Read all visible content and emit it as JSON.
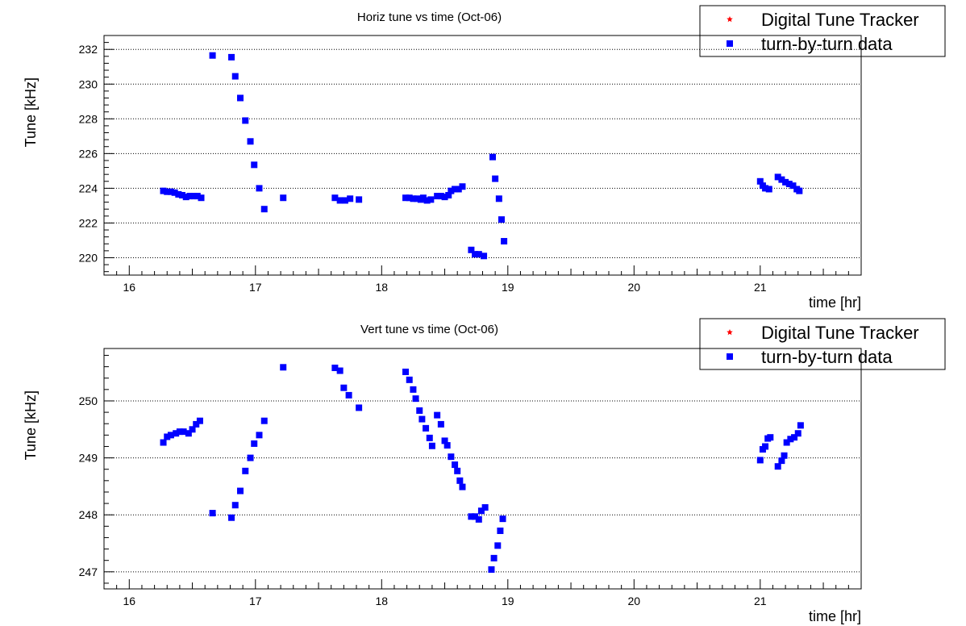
{
  "chart_data": [
    {
      "type": "scatter",
      "title": "Horiz tune vs time (Oct-06)",
      "xlabel": "time [hr]",
      "ylabel": "Tune [kHz]",
      "xlim": [
        15.8,
        21.8
      ],
      "ylim": [
        219.0,
        232.8
      ],
      "xticks": [
        16,
        17,
        18,
        19,
        20,
        21
      ],
      "yticks": [
        220,
        222,
        224,
        226,
        228,
        230,
        232
      ],
      "grid": "horizontal dotted",
      "legend": {
        "position": "top-right",
        "entries": [
          {
            "label": "Digital Tune Tracker",
            "color": "#ff0000",
            "marker": "star"
          },
          {
            "label": "turn-by-turn data",
            "color": "#0000ff",
            "marker": "square"
          }
        ]
      },
      "series": [
        {
          "name": "Digital Tune Tracker",
          "color": "#ff0000",
          "marker": "star",
          "points": []
        },
        {
          "name": "turn-by-turn data",
          "color": "#0000ff",
          "marker": "square",
          "points": [
            [
              16.27,
              223.85
            ],
            [
              16.3,
              223.8
            ],
            [
              16.33,
              223.8
            ],
            [
              16.36,
              223.75
            ],
            [
              16.39,
              223.65
            ],
            [
              16.42,
              223.6
            ],
            [
              16.45,
              223.5
            ],
            [
              16.48,
              223.55
            ],
            [
              16.51,
              223.55
            ],
            [
              16.54,
              223.55
            ],
            [
              16.57,
              223.45
            ],
            [
              16.66,
              231.65
            ],
            [
              16.81,
              231.55
            ],
            [
              16.84,
              230.45
            ],
            [
              16.88,
              229.2
            ],
            [
              16.92,
              227.9
            ],
            [
              16.96,
              226.7
            ],
            [
              16.99,
              225.35
            ],
            [
              17.03,
              224.0
            ],
            [
              17.07,
              222.8
            ],
            [
              17.22,
              223.45
            ],
            [
              17.63,
              223.45
            ],
            [
              17.67,
              223.3
            ],
            [
              17.71,
              223.3
            ],
            [
              17.75,
              223.4
            ],
            [
              17.82,
              223.35
            ],
            [
              18.19,
              223.45
            ],
            [
              18.22,
              223.45
            ],
            [
              18.25,
              223.4
            ],
            [
              18.28,
              223.4
            ],
            [
              18.31,
              223.35
            ],
            [
              18.33,
              223.45
            ],
            [
              18.36,
              223.3
            ],
            [
              18.39,
              223.35
            ],
            [
              18.44,
              223.55
            ],
            [
              18.47,
              223.55
            ],
            [
              18.5,
              223.5
            ],
            [
              18.53,
              223.6
            ],
            [
              18.55,
              223.85
            ],
            [
              18.58,
              223.95
            ],
            [
              18.61,
              223.95
            ],
            [
              18.64,
              224.1
            ],
            [
              18.71,
              220.45
            ],
            [
              18.74,
              220.2
            ],
            [
              18.77,
              220.2
            ],
            [
              18.81,
              220.1
            ],
            [
              18.88,
              225.8
            ],
            [
              18.9,
              224.55
            ],
            [
              18.93,
              223.4
            ],
            [
              18.95,
              222.2
            ],
            [
              18.97,
              220.95
            ],
            [
              21.0,
              224.4
            ],
            [
              21.02,
              224.15
            ],
            [
              21.04,
              224.0
            ],
            [
              21.07,
              223.95
            ],
            [
              21.14,
              224.65
            ],
            [
              21.17,
              224.5
            ],
            [
              21.2,
              224.35
            ],
            [
              21.23,
              224.25
            ],
            [
              21.26,
              224.15
            ],
            [
              21.29,
              223.95
            ],
            [
              21.31,
              223.85
            ]
          ]
        }
      ]
    },
    {
      "type": "scatter",
      "title": "Vert tune vs time (Oct-06)",
      "xlabel": "time [hr]",
      "ylabel": "Tune [kHz]",
      "xlim": [
        15.8,
        21.8
      ],
      "ylim": [
        246.7,
        250.92
      ],
      "xticks": [
        16,
        17,
        18,
        19,
        20,
        21
      ],
      "yticks": [
        247,
        248,
        249,
        250
      ],
      "grid": "horizontal dotted",
      "legend": {
        "position": "top-right",
        "entries": [
          {
            "label": "Digital Tune Tracker",
            "color": "#ff0000",
            "marker": "star"
          },
          {
            "label": "turn-by-turn data",
            "color": "#0000ff",
            "marker": "square"
          }
        ]
      },
      "series": [
        {
          "name": "Digital Tune Tracker",
          "color": "#ff0000",
          "marker": "star",
          "points": []
        },
        {
          "name": "turn-by-turn data",
          "color": "#0000ff",
          "marker": "square",
          "points": [
            [
              16.27,
              249.27
            ],
            [
              16.3,
              249.37
            ],
            [
              16.33,
              249.4
            ],
            [
              16.37,
              249.43
            ],
            [
              16.4,
              249.46
            ],
            [
              16.43,
              249.46
            ],
            [
              16.47,
              249.43
            ],
            [
              16.5,
              249.5
            ],
            [
              16.53,
              249.59
            ],
            [
              16.56,
              249.65
            ],
            [
              16.66,
              248.03
            ],
            [
              16.81,
              247.95
            ],
            [
              16.84,
              248.17
            ],
            [
              16.88,
              248.42
            ],
            [
              16.92,
              248.77
            ],
            [
              16.96,
              249.0
            ],
            [
              16.99,
              249.25
            ],
            [
              17.03,
              249.4
            ],
            [
              17.07,
              249.65
            ],
            [
              17.22,
              250.59
            ],
            [
              17.63,
              250.58
            ],
            [
              17.67,
              250.53
            ],
            [
              17.7,
              250.23
            ],
            [
              17.74,
              250.1
            ],
            [
              17.82,
              249.88
            ],
            [
              18.19,
              250.51
            ],
            [
              18.22,
              250.37
            ],
            [
              18.25,
              250.2
            ],
            [
              18.27,
              250.04
            ],
            [
              18.3,
              249.83
            ],
            [
              18.32,
              249.68
            ],
            [
              18.35,
              249.52
            ],
            [
              18.38,
              249.35
            ],
            [
              18.4,
              249.21
            ],
            [
              18.44,
              249.75
            ],
            [
              18.47,
              249.59
            ],
            [
              18.5,
              249.3
            ],
            [
              18.52,
              249.22
            ],
            [
              18.55,
              249.02
            ],
            [
              18.58,
              248.88
            ],
            [
              18.6,
              248.77
            ],
            [
              18.62,
              248.6
            ],
            [
              18.64,
              248.49
            ],
            [
              18.71,
              247.97
            ],
            [
              18.74,
              247.97
            ],
            [
              18.77,
              247.92
            ],
            [
              18.79,
              248.07
            ],
            [
              18.82,
              248.13
            ],
            [
              18.87,
              247.04
            ],
            [
              18.89,
              247.24
            ],
            [
              18.92,
              247.46
            ],
            [
              18.94,
              247.72
            ],
            [
              18.96,
              247.93
            ],
            [
              21.0,
              248.96
            ],
            [
              21.02,
              249.15
            ],
            [
              21.04,
              249.2
            ],
            [
              21.06,
              249.34
            ],
            [
              21.08,
              249.36
            ],
            [
              21.14,
              248.85
            ],
            [
              21.17,
              248.95
            ],
            [
              21.19,
              249.04
            ],
            [
              21.21,
              249.27
            ],
            [
              21.24,
              249.33
            ],
            [
              21.27,
              249.36
            ],
            [
              21.3,
              249.43
            ],
            [
              21.32,
              249.57
            ]
          ]
        }
      ]
    }
  ]
}
